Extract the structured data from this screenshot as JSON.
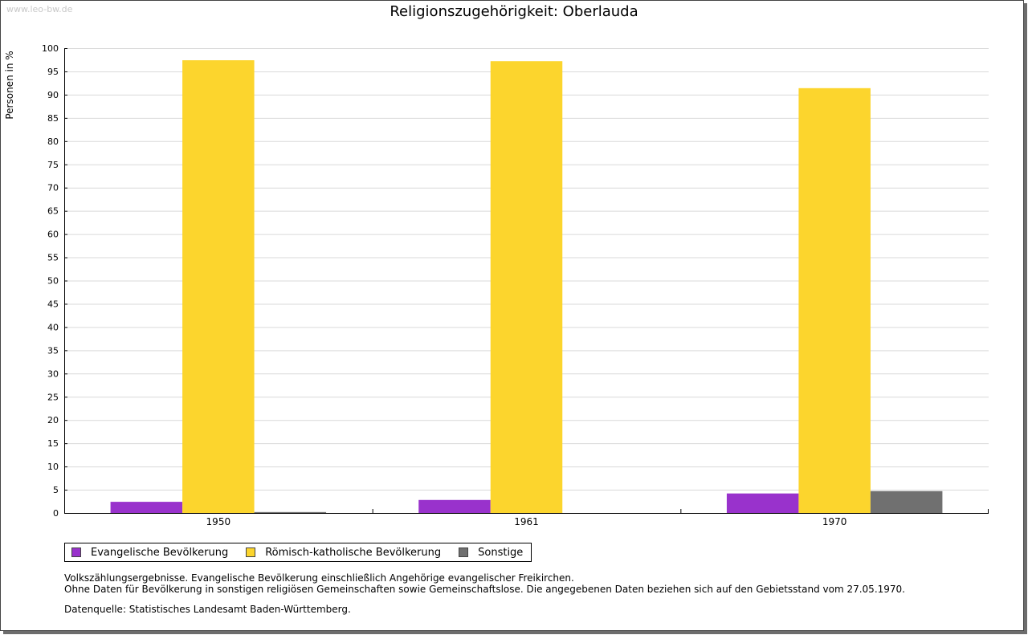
{
  "watermark": "www.leo-bw.de",
  "chart_data": {
    "type": "bar",
    "title": "Religionszugehörigkeit: Oberlauda",
    "xlabel": "",
    "ylabel": "Personen in %",
    "ylim": [
      0,
      100
    ],
    "yticks": [
      0,
      5,
      10,
      15,
      20,
      25,
      30,
      35,
      40,
      45,
      50,
      55,
      60,
      65,
      70,
      75,
      80,
      85,
      90,
      95,
      100
    ],
    "grid": true,
    "categories": [
      "1950",
      "1961",
      "1970"
    ],
    "series": [
      {
        "name": "Evangelische Bevölkerung",
        "color": "#9932cc",
        "values": [
          2.4,
          2.8,
          4.2
        ]
      },
      {
        "name": "Römisch-katholische Bevölkerung",
        "color": "#fcd52d",
        "values": [
          97.4,
          97.2,
          91.4
        ]
      },
      {
        "name": "Sonstige",
        "color": "#707070",
        "values": [
          0.2,
          0.0,
          4.7
        ]
      }
    ],
    "legend_position": "bottom-left"
  },
  "notes": {
    "line1": "Volkszählungsergebnisse. Evangelische Bevölkerung einschließlich Angehörige evangelischer Freikirchen.",
    "line2": "Ohne Daten für Bevölkerung in sonstigen religiösen Gemeinschaften sowie Gemeinschaftslose. Die angegebenen Daten beziehen sich auf den Gebietsstand vom 27.05.1970.",
    "source": "Datenquelle: Statistisches Landesamt Baden-Württemberg."
  }
}
